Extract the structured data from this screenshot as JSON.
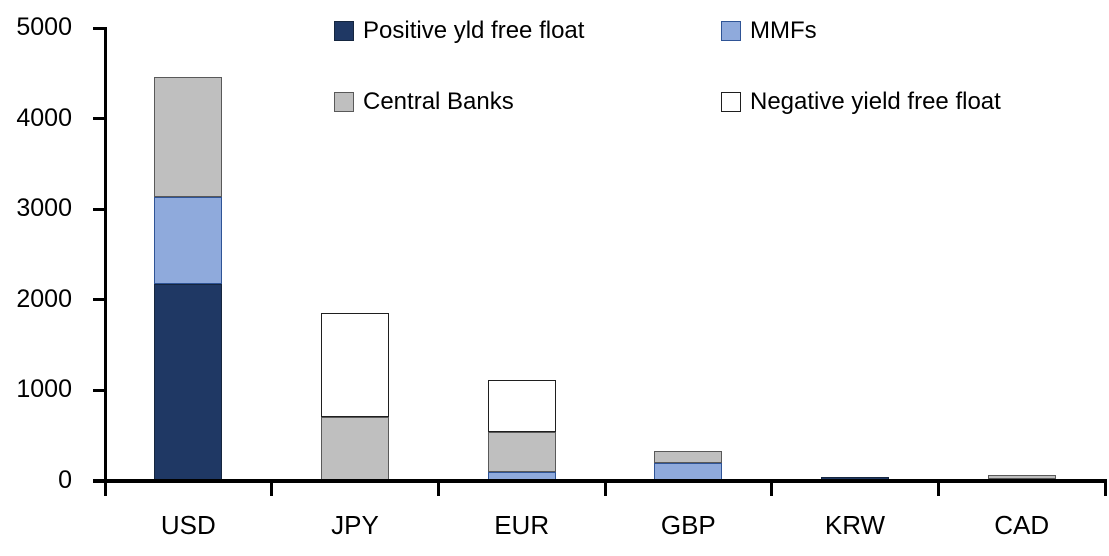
{
  "chart_data": {
    "type": "bar",
    "stacked": true,
    "title": "",
    "xlabel": "",
    "ylabel": "",
    "categories": [
      "USD",
      "JPY",
      "EUR",
      "GBP",
      "KRW",
      "CAD"
    ],
    "series": [
      {
        "name": "Positive yld free float",
        "color": "#1F3864",
        "border_color": "#15263F",
        "values": [
          2180,
          0,
          0,
          0,
          40,
          25
        ]
      },
      {
        "name": "MMFs",
        "color": "#8FAADC",
        "border_color": "#2F5496",
        "values": [
          960,
          0,
          100,
          200,
          0,
          0
        ]
      },
      {
        "name": "Central Banks",
        "color": "#BFBFBF",
        "border_color": "#595959",
        "values": [
          1320,
          710,
          440,
          130,
          0,
          40
        ]
      },
      {
        "name": "Negative yield free float",
        "color": "#FFFFFF",
        "border_color": "#1F1F1F",
        "values": [
          0,
          1150,
          580,
          0,
          0,
          0
        ]
      }
    ],
    "ylim": [
      0,
      5000
    ],
    "yticks": [
      0,
      1000,
      2000,
      3000,
      4000,
      5000
    ],
    "grid": false,
    "legend_position": "top-two-column",
    "axis_color": "#000000",
    "background_color": "#FFFFFF"
  }
}
